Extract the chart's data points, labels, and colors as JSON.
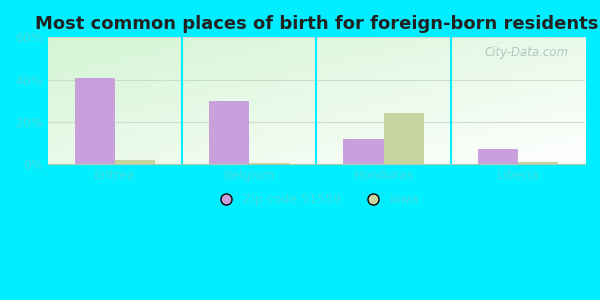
{
  "title": "Most common places of birth for foreign-born residents",
  "categories": [
    "Eritrea",
    "Belgium",
    "Honduras",
    "Liberia"
  ],
  "zip_values": [
    41,
    30,
    12,
    7
  ],
  "iowa_values": [
    2,
    0.5,
    24,
    1
  ],
  "zip_color": "#c9a0dc",
  "iowa_color": "#c8d4a0",
  "zip_label": "Zip code 51559",
  "iowa_label": "Iowa",
  "ylim": [
    0,
    60
  ],
  "yticks": [
    0,
    20,
    40,
    60
  ],
  "yticklabels": [
    "0%",
    "20%",
    "40%",
    "60%"
  ],
  "bg_outer": "#00eeff",
  "title_fontsize": 13,
  "bar_width": 0.3,
  "watermark": "City-Data.com",
  "tick_color": "#44dddd",
  "grid_color": "#ddeeee"
}
